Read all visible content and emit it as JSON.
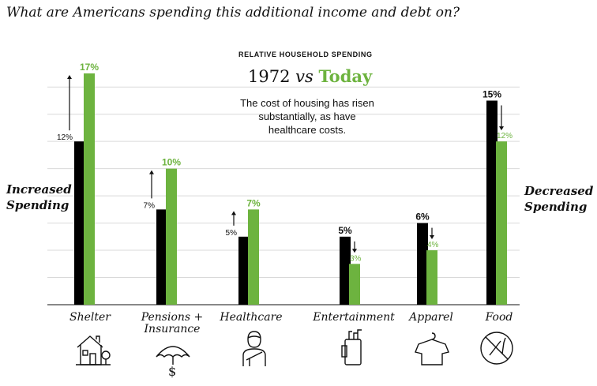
{
  "heading": "What are Americans spending this additional income and debt on?",
  "left_label": [
    "Increased",
    "Spending"
  ],
  "right_label": [
    "Decreased",
    "Spending"
  ],
  "subtitle": "RELATIVE HOUSEHOLD SPENDING",
  "comparison": {
    "then": "1972",
    "vs": "vs",
    "now": "Today"
  },
  "annotation": "The cost of housing has risen substantially, as have healthcare costs.",
  "colors": {
    "then": "#000000",
    "now": "#6db33f",
    "grid": "#d9d9d9"
  },
  "chart_data": {
    "type": "bar",
    "categories": [
      "Shelter",
      "Pensions + Insurance",
      "Healthcare",
      "Entertainment",
      "Apparel",
      "Food"
    ],
    "series": [
      {
        "name": "1972",
        "values": [
          12,
          7,
          5,
          5,
          6,
          15
        ],
        "labels": [
          "12%",
          "7%",
          "5%",
          "5%",
          "6%",
          "15%"
        ]
      },
      {
        "name": "Today",
        "values": [
          17,
          10,
          7,
          3,
          4,
          12
        ],
        "labels": [
          "17%",
          "10%",
          "7%",
          "3%",
          "4%",
          "12%"
        ]
      }
    ],
    "direction": [
      "increase",
      "increase",
      "increase",
      "decrease",
      "decrease",
      "decrease"
    ],
    "ylim": [
      0,
      17
    ],
    "grid": true
  },
  "icons": [
    "house-icon",
    "umbrella-dollar-icon",
    "doctor-icon",
    "golf-bag-icon",
    "shirt-hanger-icon",
    "no-food-icon"
  ]
}
